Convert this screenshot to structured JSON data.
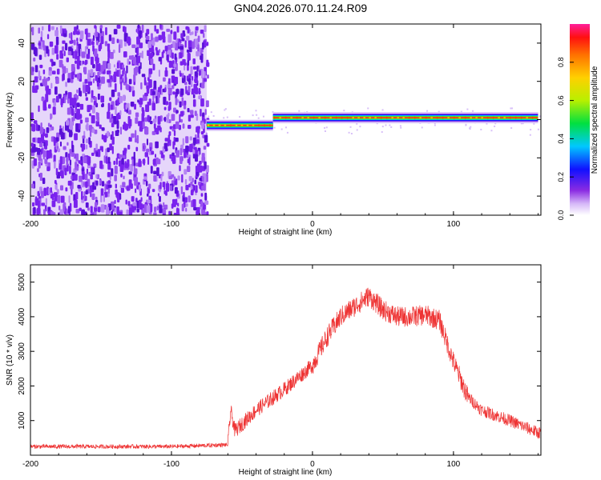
{
  "title": "GN04.2026.070.11.24.R09",
  "colors": {
    "signal": "#ee3333",
    "spec_noise": "#7a22ee"
  },
  "chart_data": [
    {
      "type": "heatmap",
      "xlabel": "Height of straight line (km)",
      "ylabel": "Frequency (Hz)",
      "xlim": [
        -200,
        162
      ],
      "ylim": [
        -50,
        50
      ],
      "x_ticks": [
        -200,
        -100,
        0,
        100
      ],
      "y_ticks": [
        -40,
        -20,
        0,
        20,
        40
      ],
      "colorbar": {
        "label": "Normalized spectral amplitude",
        "range": [
          0,
          1
        ],
        "ticks": [
          "0.0",
          "0.2",
          "0.4",
          "0.6",
          "0.8"
        ]
      },
      "regions": [
        {
          "x_range": [
            -200,
            -75
          ],
          "description_value": "broadband noise, amplitude ~0.1-0.3 across all frequencies"
        },
        {
          "x_range": [
            -75,
            -28
          ],
          "frequency_hz": -3,
          "peak_amplitude": 0.95
        },
        {
          "x_range": [
            -28,
            160
          ],
          "frequency_hz": 1,
          "peak_amplitude": 1.0
        }
      ]
    },
    {
      "type": "line",
      "xlabel": "Height of straight line (km)",
      "ylabel": "SNR (10 * v/v)",
      "xlim": [
        -200,
        162
      ],
      "ylim": [
        0,
        5500
      ],
      "x_ticks": [
        -200,
        -100,
        0,
        100
      ],
      "y_ticks": [
        1000,
        2000,
        3000,
        4000,
        5000
      ],
      "series": [
        {
          "x": [
            -200,
            -150,
            -100,
            -60,
            -58,
            -55,
            -40,
            -20,
            0,
            10,
            20,
            30,
            40,
            50,
            60,
            70,
            80,
            90,
            100,
            110,
            120,
            140,
            160
          ],
          "y": [
            250,
            250,
            250,
            300,
            1300,
            700,
            1300,
            1900,
            2600,
            3400,
            4000,
            4300,
            4600,
            4200,
            4000,
            4000,
            4050,
            3900,
            2700,
            1700,
            1300,
            1000,
            650
          ]
        }
      ]
    }
  ]
}
